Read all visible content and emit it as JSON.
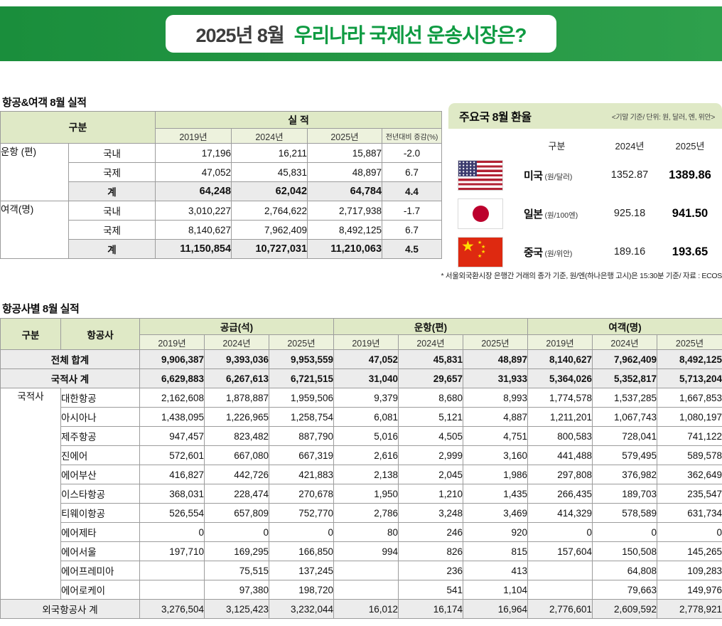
{
  "banner": {
    "title_prefix": "2025년 8월",
    "title_main": "우리나라 국제선 운송시장은?"
  },
  "left_table": {
    "section_title": "항공&여객 8월 실적",
    "header": {
      "category": "구분",
      "performance": "실 적",
      "years": [
        "2019년",
        "2024년",
        "2025년"
      ],
      "yoy": "전년대비 증감(%)"
    },
    "groups": [
      {
        "label": "운항 (편)",
        "rows": [
          {
            "label": "국내",
            "total": false,
            "values": [
              "17,196",
              "16,211",
              "15,887",
              "-2.0"
            ]
          },
          {
            "label": "국제",
            "total": false,
            "values": [
              "47,052",
              "45,831",
              "48,897",
              "6.7"
            ]
          },
          {
            "label": "계",
            "total": true,
            "values": [
              "64,248",
              "62,042",
              "64,784",
              "4.4"
            ]
          }
        ]
      },
      {
        "label": "여객(명)",
        "rows": [
          {
            "label": "국내",
            "total": false,
            "values": [
              "3,010,227",
              "2,764,622",
              "2,717,938",
              "-1.7"
            ]
          },
          {
            "label": "국제",
            "total": false,
            "values": [
              "8,140,627",
              "7,962,409",
              "8,492,125",
              "6.7"
            ]
          },
          {
            "label": "계",
            "total": true,
            "values": [
              "11,150,854",
              "10,727,031",
              "11,210,063",
              "4.5"
            ]
          }
        ]
      }
    ]
  },
  "fx_box": {
    "title": "주요국 8월 환율",
    "note": "<기말 기준/ 단위: 원, 달러, 엔, 위안>",
    "columns": [
      "구분",
      "2024년",
      "2025년"
    ],
    "rows": [
      {
        "flag": "us",
        "country": "미국",
        "unit": "(원/달러)",
        "y2024": "1352.87",
        "y2025": "1389.86"
      },
      {
        "flag": "jp",
        "country": "일본",
        "unit": "(원/100엔)",
        "y2024": "925.18",
        "y2025": "941.50"
      },
      {
        "flag": "cn",
        "country": "중국",
        "unit": "(원/위안)",
        "y2024": "189.16",
        "y2025": "193.65"
      }
    ],
    "footnote": "* 서울외국환시장 은행간 거래의 종가 기준, 원/엔(하나은행 고시)은 15:30분 기준/ 자료 : ECOS"
  },
  "airline_table": {
    "section_title": "항공사별 8월 실적",
    "col_category": "구분",
    "col_airline": "항공사",
    "group_headers": [
      "공급(석)",
      "운항(편)",
      "여객(명)"
    ],
    "years": [
      "2019년",
      "2024년",
      "2025년"
    ],
    "rows": [
      {
        "type": "summary",
        "label": "전체 합계",
        "values": [
          "9,906,387",
          "9,393,036",
          "9,953,559",
          "47,052",
          "45,831",
          "48,897",
          "8,140,627",
          "7,962,409",
          "8,492,125"
        ]
      },
      {
        "type": "summary",
        "label": "국적사 계",
        "values": [
          "6,629,883",
          "6,267,613",
          "6,721,515",
          "31,040",
          "29,657",
          "31,933",
          "5,364,026",
          "5,352,817",
          "5,713,204"
        ]
      },
      {
        "type": "airline",
        "group": "국적사",
        "label": "대한항공",
        "values": [
          "2,162,608",
          "1,878,887",
          "1,959,506",
          "9,379",
          "8,680",
          "8,993",
          "1,774,578",
          "1,537,285",
          "1,667,853"
        ]
      },
      {
        "type": "airline",
        "label": "아시아나",
        "values": [
          "1,438,095",
          "1,226,965",
          "1,258,754",
          "6,081",
          "5,121",
          "4,887",
          "1,211,201",
          "1,067,743",
          "1,080,197"
        ]
      },
      {
        "type": "airline",
        "label": "제주항공",
        "values": [
          "947,457",
          "823,482",
          "887,790",
          "5,016",
          "4,505",
          "4,751",
          "800,583",
          "728,041",
          "741,122"
        ]
      },
      {
        "type": "airline",
        "label": "진에어",
        "values": [
          "572,601",
          "667,080",
          "667,319",
          "2,616",
          "2,999",
          "3,160",
          "441,488",
          "579,495",
          "589,578"
        ]
      },
      {
        "type": "airline",
        "label": "에어부산",
        "values": [
          "416,827",
          "442,726",
          "421,883",
          "2,138",
          "2,045",
          "1,986",
          "297,808",
          "376,982",
          "362,649"
        ]
      },
      {
        "type": "airline",
        "label": "이스타항공",
        "values": [
          "368,031",
          "228,474",
          "270,678",
          "1,950",
          "1,210",
          "1,435",
          "266,435",
          "189,703",
          "235,547"
        ]
      },
      {
        "type": "airline",
        "label": "티웨이항공",
        "values": [
          "526,554",
          "657,809",
          "752,770",
          "2,786",
          "3,248",
          "3,469",
          "414,329",
          "578,589",
          "631,734"
        ]
      },
      {
        "type": "airline",
        "label": "에어제타",
        "values": [
          "0",
          "0",
          "0",
          "80",
          "246",
          "920",
          "0",
          "0",
          "0"
        ]
      },
      {
        "type": "airline",
        "label": "에어서울",
        "values": [
          "197,710",
          "169,295",
          "166,850",
          "994",
          "826",
          "815",
          "157,604",
          "150,508",
          "145,265"
        ]
      },
      {
        "type": "airline",
        "label": "에어프레미아",
        "values": [
          "",
          "75,515",
          "137,245",
          "",
          "236",
          "413",
          "",
          "64,808",
          "109,283"
        ]
      },
      {
        "type": "airline",
        "label": "에어로케이",
        "values": [
          "",
          "97,380",
          "198,720",
          "",
          "541",
          "1,104",
          "",
          "79,663",
          "149,976"
        ]
      },
      {
        "type": "footer",
        "label": "외국항공사 계",
        "values": [
          "3,276,504",
          "3,125,423",
          "3,232,044",
          "16,012",
          "16,174",
          "16,964",
          "2,776,601",
          "2,609,592",
          "2,778,921"
        ]
      }
    ]
  }
}
